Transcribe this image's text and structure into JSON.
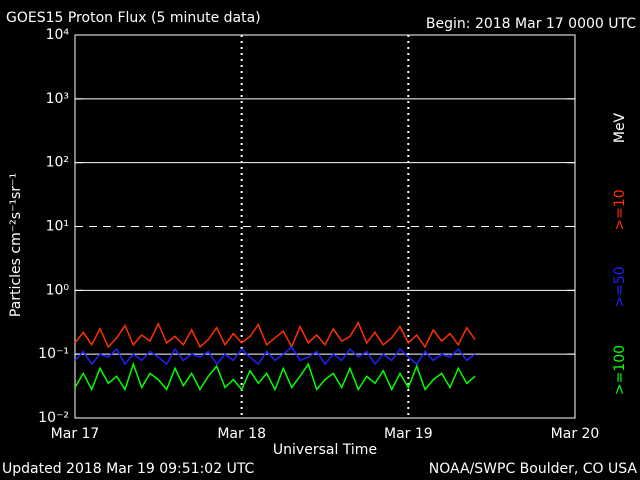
{
  "chart_data": {
    "type": "line",
    "title": "GOES15 Proton Flux (5 minute data)",
    "subtitle": "Begin: 2018 Mar 17 0000 UTC",
    "x_label": "Universal Time",
    "y_label": "Particles cm⁻²s⁻¹sr⁻¹",
    "legend_unit": "MeV",
    "updated": "Updated 2018 Mar 19 09:51:02 UTC",
    "source": "NOAA/SWPC Boulder, CO USA",
    "log_y": true,
    "grid": true,
    "threshold_line": 10,
    "xlim": [
      0,
      3
    ],
    "xticks": [
      {
        "value": 0,
        "label": "Mar 17"
      },
      {
        "value": 1,
        "label": "Mar 18"
      },
      {
        "value": 2,
        "label": "Mar 19"
      },
      {
        "value": 3,
        "label": "Mar 20"
      }
    ],
    "ylim": [
      0.01,
      10000
    ],
    "yticks": [
      {
        "value": 0.01,
        "label": "10⁻²"
      },
      {
        "value": 0.1,
        "label": "10⁻¹"
      },
      {
        "value": 1,
        "label": "10⁰"
      },
      {
        "value": 10,
        "label": "10¹"
      },
      {
        "value": 100,
        "label": "10²"
      },
      {
        "value": 1000,
        "label": "10³"
      },
      {
        "value": 10000,
        "label": "10⁴"
      }
    ],
    "x": [
      0,
      0.05,
      0.1,
      0.15,
      0.2,
      0.25,
      0.3,
      0.35,
      0.4,
      0.45,
      0.5,
      0.55,
      0.6,
      0.65,
      0.7,
      0.75,
      0.8,
      0.85,
      0.9,
      0.95,
      1,
      1.05,
      1.1,
      1.15,
      1.2,
      1.25,
      1.3,
      1.35,
      1.4,
      1.45,
      1.5,
      1.55,
      1.6,
      1.65,
      1.7,
      1.75,
      1.8,
      1.85,
      1.9,
      1.95,
      2,
      2.05,
      2.1,
      2.15,
      2.2,
      2.25,
      2.3,
      2.35,
      2.4
    ],
    "series": [
      {
        "name": ">=10",
        "color": "#ff3000",
        "values": [
          0.15,
          0.22,
          0.14,
          0.25,
          0.13,
          0.18,
          0.28,
          0.14,
          0.2,
          0.16,
          0.3,
          0.15,
          0.19,
          0.14,
          0.24,
          0.13,
          0.17,
          0.26,
          0.14,
          0.21,
          0.15,
          0.19,
          0.29,
          0.14,
          0.18,
          0.23,
          0.13,
          0.27,
          0.15,
          0.2,
          0.14,
          0.25,
          0.16,
          0.19,
          0.31,
          0.15,
          0.22,
          0.14,
          0.18,
          0.27,
          0.15,
          0.2,
          0.13,
          0.24,
          0.16,
          0.21,
          0.14,
          0.26,
          0.17
        ]
      },
      {
        "name": ">=50",
        "color": "#2020ff",
        "values": [
          0.08,
          0.11,
          0.07,
          0.1,
          0.09,
          0.12,
          0.07,
          0.1,
          0.08,
          0.11,
          0.09,
          0.07,
          0.12,
          0.08,
          0.1,
          0.09,
          0.11,
          0.07,
          0.1,
          0.08,
          0.12,
          0.09,
          0.07,
          0.11,
          0.08,
          0.1,
          0.13,
          0.08,
          0.09,
          0.11,
          0.07,
          0.1,
          0.08,
          0.12,
          0.09,
          0.11,
          0.07,
          0.1,
          0.08,
          0.12,
          0.09,
          0.07,
          0.11,
          0.08,
          0.1,
          0.09,
          0.12,
          0.08,
          0.1
        ]
      },
      {
        "name": ">=100",
        "color": "#00ff00",
        "values": [
          0.03,
          0.05,
          0.028,
          0.06,
          0.035,
          0.045,
          0.028,
          0.07,
          0.03,
          0.05,
          0.04,
          0.028,
          0.06,
          0.032,
          0.05,
          0.028,
          0.045,
          0.065,
          0.03,
          0.04,
          0.028,
          0.055,
          0.035,
          0.05,
          0.028,
          0.06,
          0.03,
          0.045,
          0.07,
          0.028,
          0.04,
          0.05,
          0.03,
          0.06,
          0.028,
          0.045,
          0.035,
          0.055,
          0.028,
          0.05,
          0.03,
          0.065,
          0.028,
          0.04,
          0.05,
          0.03,
          0.06,
          0.035,
          0.045
        ]
      }
    ]
  }
}
